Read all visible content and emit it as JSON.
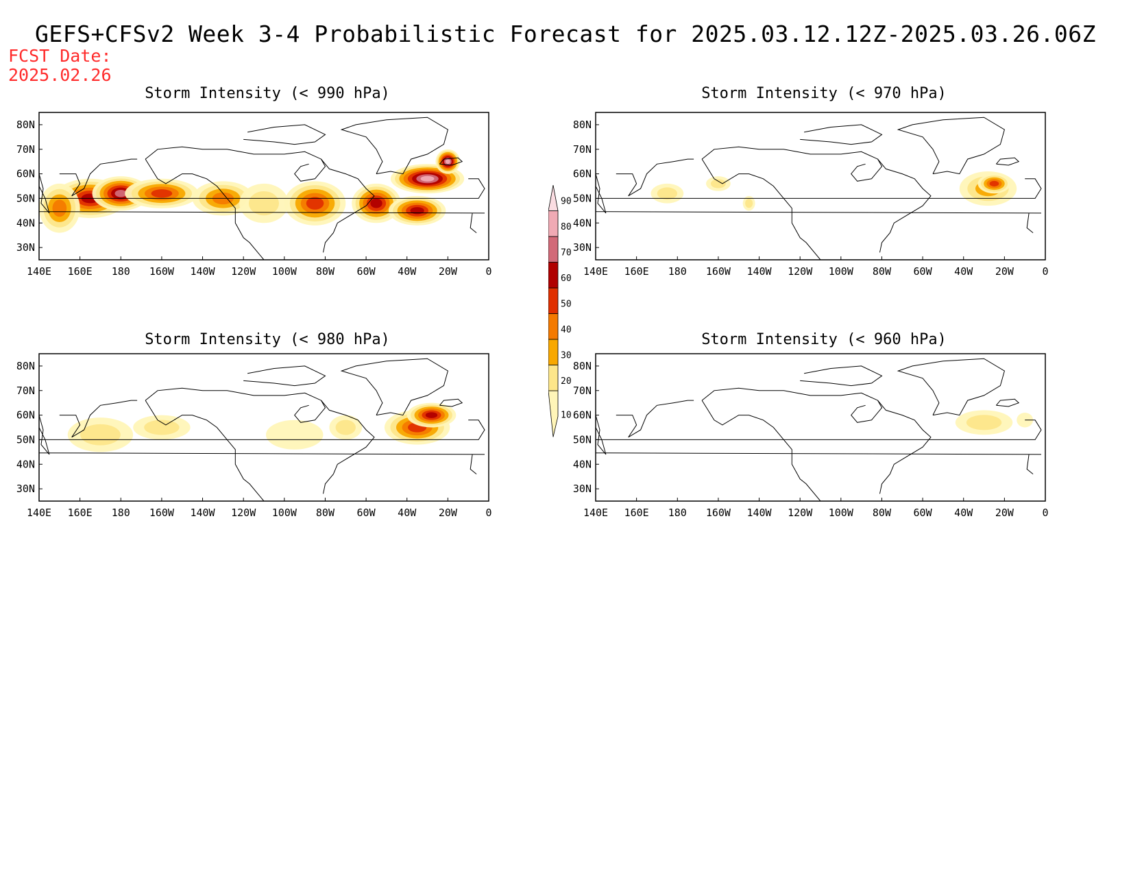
{
  "title": "GEFS+CFSv2 Week 3-4 Probabilistic Forecast for 2025.03.12.12Z-2025.03.26.06Z",
  "fcst_label": "FCST Date:",
  "fcst_date": "2025.02.26",
  "axes": {
    "lon_labels": [
      "140E",
      "160E",
      "180",
      "160W",
      "140W",
      "120W",
      "100W",
      "80W",
      "60W",
      "40W",
      "20W",
      "0"
    ],
    "lat_labels": [
      "80N",
      "70N",
      "60N",
      "50N",
      "40N",
      "30N"
    ]
  },
  "colors": {
    "levels": [
      10,
      20,
      30,
      40,
      50,
      60,
      70,
      80,
      90
    ],
    "fills": [
      "#fff5b8",
      "#fde68a",
      "#f8a800",
      "#f47a00",
      "#e03000",
      "#b00000",
      "#d26a78",
      "#f0aab4",
      "#fbdde2"
    ]
  },
  "panels": [
    {
      "title": "Storm Intensity (< 990 hPa)",
      "blobs": [
        {
          "lon": 165,
          "lat": 50,
          "rlon": 18,
          "rlat": 8,
          "level": 60
        },
        {
          "lon": 180,
          "lat": 52,
          "rlon": 14,
          "rlat": 7,
          "level": 70
        },
        {
          "lon": 150,
          "lat": 46,
          "rlon": 10,
          "rlat": 10,
          "level": 40
        },
        {
          "lon": -160,
          "lat": 52,
          "rlon": 18,
          "rlat": 6,
          "level": 50
        },
        {
          "lon": -130,
          "lat": 50,
          "rlon": 15,
          "rlat": 7,
          "level": 40
        },
        {
          "lon": -110,
          "lat": 48,
          "rlon": 12,
          "rlat": 8,
          "level": 20
        },
        {
          "lon": -85,
          "lat": 48,
          "rlon": 15,
          "rlat": 9,
          "level": 50
        },
        {
          "lon": -55,
          "lat": 48,
          "rlon": 12,
          "rlat": 8,
          "level": 60
        },
        {
          "lon": -35,
          "lat": 45,
          "rlon": 14,
          "rlat": 6,
          "level": 60
        },
        {
          "lon": -30,
          "lat": 58,
          "rlon": 18,
          "rlat": 6,
          "level": 80
        },
        {
          "lon": -20,
          "lat": 65,
          "rlon": 6,
          "rlat": 5,
          "level": 80
        }
      ]
    },
    {
      "title": "Storm Intensity (< 970 hPa)",
      "blobs": [
        {
          "lon": 175,
          "lat": 52,
          "rlon": 8,
          "rlat": 4,
          "level": 20
        },
        {
          "lon": -160,
          "lat": 56,
          "rlon": 6,
          "rlat": 3,
          "level": 20
        },
        {
          "lon": -145,
          "lat": 48,
          "rlon": 3,
          "rlat": 3,
          "level": 20
        },
        {
          "lon": -28,
          "lat": 54,
          "rlon": 14,
          "rlat": 7,
          "level": 30
        },
        {
          "lon": -25,
          "lat": 56,
          "rlon": 8,
          "rlat": 4,
          "level": 50
        }
      ]
    },
    {
      "title": "Storm Intensity (< 980 hPa)",
      "blobs": [
        {
          "lon": 170,
          "lat": 52,
          "rlon": 16,
          "rlat": 7,
          "level": 20
        },
        {
          "lon": -160,
          "lat": 55,
          "rlon": 14,
          "rlat": 5,
          "level": 20
        },
        {
          "lon": -95,
          "lat": 52,
          "rlon": 14,
          "rlat": 6,
          "level": 10
        },
        {
          "lon": -70,
          "lat": 55,
          "rlon": 8,
          "rlat": 5,
          "level": 20
        },
        {
          "lon": -35,
          "lat": 55,
          "rlon": 16,
          "rlat": 7,
          "level": 50
        },
        {
          "lon": -28,
          "lat": 60,
          "rlon": 12,
          "rlat": 5,
          "level": 60
        }
      ]
    },
    {
      "title": "Storm Intensity (< 960 hPa)",
      "blobs": [
        {
          "lon": -30,
          "lat": 57,
          "rlon": 14,
          "rlat": 5,
          "level": 20
        },
        {
          "lon": -10,
          "lat": 58,
          "rlon": 4,
          "rlat": 3,
          "level": 10
        }
      ]
    }
  ]
}
